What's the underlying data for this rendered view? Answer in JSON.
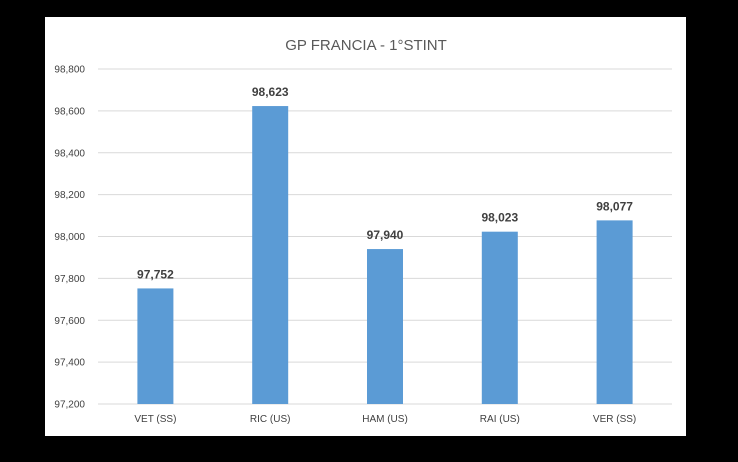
{
  "chart_data": {
    "type": "bar",
    "title": "GP FRANCIA - 1°STINT",
    "categories": [
      "VET (SS)",
      "RIC (US)",
      "HAM (US)",
      "RAI (US)",
      "VER (SS)"
    ],
    "values": [
      97.752,
      98.623,
      97.94,
      98.023,
      98.077
    ],
    "value_labels": [
      "97,752",
      "98,623",
      "97,940",
      "98,023",
      "98,077"
    ],
    "y_ticks": [
      97.2,
      97.4,
      97.6,
      97.8,
      98.0,
      98.2,
      98.4,
      98.6,
      98.8
    ],
    "y_tick_labels": [
      "97,200",
      "97,400",
      "97,600",
      "97,800",
      "98,000",
      "98,200",
      "98,400",
      "98,600",
      "98,800"
    ],
    "ylim": [
      97.2,
      98.8
    ],
    "xlabel": "",
    "ylabel": "",
    "grid": true,
    "legend": "none",
    "bar_color": "#5b9bd5",
    "grid_color": "#d9d9d9"
  }
}
